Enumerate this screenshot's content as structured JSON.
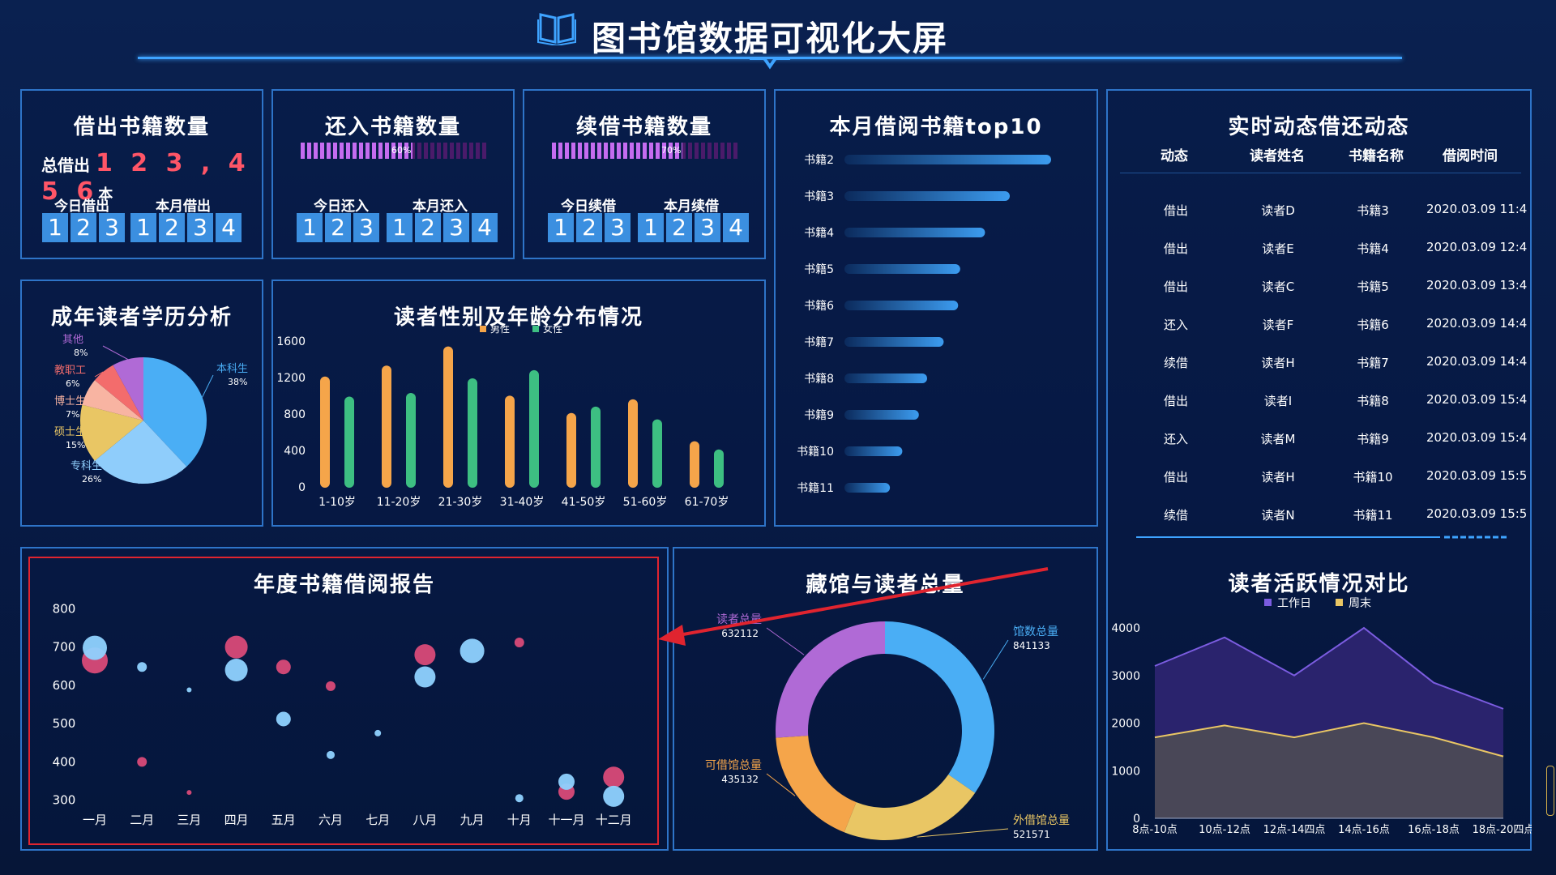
{
  "header": {
    "title": "图书馆数据可视化大屏"
  },
  "borrow_card": {
    "title": "借出书籍数量",
    "total_label": "总借出",
    "total_value": "1 2 3 , 4 5 6",
    "total_unit": "本",
    "today_label": "今日借出",
    "month_label": "本月借出",
    "today_digits": [
      "1",
      "2",
      "3"
    ],
    "month_digits": [
      "1",
      "2",
      "3",
      "4"
    ]
  },
  "return_card": {
    "title": "还入书籍数量",
    "progress": 60,
    "progress_label": "60%",
    "today_label": "今日还入",
    "month_label": "本月还入",
    "today_digits": [
      "1",
      "2",
      "3"
    ],
    "month_digits": [
      "1",
      "2",
      "3",
      "4"
    ]
  },
  "renew_card": {
    "title": "续借书籍数量",
    "progress": 70,
    "progress_label": "70%",
    "today_label": "今日续借",
    "month_label": "本月续借",
    "today_digits": [
      "1",
      "2",
      "3"
    ],
    "month_digits": [
      "1",
      "2",
      "3",
      "4"
    ]
  },
  "top10": {
    "title": "本月借阅书籍top10",
    "chart_data": {
      "type": "bar",
      "categories": [
        "书籍2",
        "书籍3",
        "书籍4",
        "书籍5",
        "书籍6",
        "书籍7",
        "书籍8",
        "书籍9",
        "书籍10",
        "书籍11"
      ],
      "values": [
        100,
        80,
        68,
        56,
        55,
        48,
        40,
        36,
        28,
        22
      ],
      "orientation": "horizontal"
    }
  },
  "realtime": {
    "title": "实时动态借还动态",
    "columns": [
      "动态",
      "读者姓名",
      "书籍名称",
      "借阅时间"
    ],
    "rows": [
      [
        "借出",
        "读者D",
        "书籍3",
        "2020.03.09 11:4"
      ],
      [
        "借出",
        "读者E",
        "书籍4",
        "2020.03.09 12:4"
      ],
      [
        "借出",
        "读者C",
        "书籍5",
        "2020.03.09 13:4"
      ],
      [
        "还入",
        "读者F",
        "书籍6",
        "2020.03.09 14:4"
      ],
      [
        "续借",
        "读者H",
        "书籍7",
        "2020.03.09 14:4"
      ],
      [
        "借出",
        "读者I",
        "书籍8",
        "2020.03.09 15:4"
      ],
      [
        "还入",
        "读者M",
        "书籍9",
        "2020.03.09 15:4"
      ],
      [
        "借出",
        "读者H",
        "书籍10",
        "2020.03.09 15:5"
      ],
      [
        "续借",
        "读者N",
        "书籍11",
        "2020.03.09 15:5"
      ]
    ]
  },
  "education": {
    "title": "成年读者学历分析",
    "chart_data": {
      "type": "pie",
      "slices": [
        {
          "name": "本科生",
          "value": 38,
          "label": "38%",
          "color": "#4aaef5"
        },
        {
          "name": "专科生",
          "value": 26,
          "label": "26%",
          "color": "#8fcdfb"
        },
        {
          "name": "硕士生",
          "value": 15,
          "label": "15%",
          "color": "#e9c664"
        },
        {
          "name": "博士生",
          "value": 7,
          "label": "7%",
          "color": "#f8b4a2"
        },
        {
          "name": "教职工",
          "value": 6,
          "label": "6%",
          "color": "#f36c6c"
        },
        {
          "name": "其他",
          "value": 8,
          "label": "8%",
          "color": "#b06ad6"
        }
      ]
    }
  },
  "gender_age": {
    "title": "读者性别及年龄分布情况",
    "chart_data": {
      "type": "bar",
      "categories": [
        "1-10岁",
        "11-20岁",
        "21-30岁",
        "31-40岁",
        "41-50岁",
        "51-60岁",
        "61-70岁"
      ],
      "series": [
        {
          "name": "男性",
          "color": "#f5a54a",
          "values": [
            1220,
            1340,
            1550,
            1010,
            820,
            970,
            510
          ]
        },
        {
          "name": "女性",
          "color": "#3dbf82",
          "values": [
            1000,
            1040,
            1200,
            1290,
            890,
            750,
            420
          ]
        }
      ],
      "yticks": [
        "0",
        "400",
        "800",
        "1200",
        "1600"
      ],
      "ylim": [
        0,
        1600
      ]
    }
  },
  "annual": {
    "title": "年度书籍借阅报告",
    "chart_data": {
      "type": "scatter",
      "categories": [
        "一月",
        "二月",
        "三月",
        "四月",
        "五月",
        "六月",
        "七月",
        "八月",
        "九月",
        "十月",
        "十一月",
        "十二月"
      ],
      "yticks": [
        "300",
        "400",
        "500",
        "600",
        "700",
        "800"
      ],
      "ylim": [
        280,
        820
      ],
      "series": [
        {
          "color": "#d94a78",
          "points": [
            [
              0,
              665,
              16
            ],
            [
              1,
              400,
              6
            ],
            [
              2,
              320,
              3
            ],
            [
              3,
              700,
              14
            ],
            [
              4,
              648,
              9
            ],
            [
              5,
              598,
              6
            ],
            [
              7,
              680,
              13
            ],
            [
              9,
              712,
              6
            ],
            [
              10,
              322,
              10
            ],
            [
              11,
              360,
              13
            ]
          ]
        },
        {
          "color": "#8fd2ff",
          "points": [
            [
              0,
              698,
              15
            ],
            [
              1,
              648,
              6
            ],
            [
              2,
              588,
              3
            ],
            [
              3,
              640,
              14
            ],
            [
              4,
              512,
              9
            ],
            [
              5,
              418,
              5
            ],
            [
              6,
              475,
              4
            ],
            [
              7,
              622,
              13
            ],
            [
              8,
              690,
              15
            ],
            [
              9,
              305,
              5
            ],
            [
              10,
              348,
              10
            ],
            [
              11,
              310,
              13
            ]
          ]
        }
      ]
    }
  },
  "collection": {
    "title": "藏馆与读者总量",
    "chart_data": {
      "type": "pie",
      "slices": [
        {
          "name": "馆数总量",
          "value": 841133,
          "label": "841133",
          "color": "#4aaef5"
        },
        {
          "name": "外借馆总量",
          "value": 521571,
          "label": "521571",
          "color": "#e9c664"
        },
        {
          "name": "可借馆总量",
          "value": 435132,
          "label": "435132",
          "color": "#f5a54a"
        },
        {
          "name": "读者总量",
          "value": 632112,
          "label": "632112",
          "color": "#b06ad6"
        }
      ]
    }
  },
  "activity": {
    "title": "读者活跃情况对比",
    "chart_data": {
      "type": "area",
      "categories": [
        "8点-10点",
        "10点-12点",
        "12点-14四点",
        "14点-16点",
        "16点-18点",
        "18点-20四点"
      ],
      "series": [
        {
          "name": "工作日",
          "color": "#7b5ce0",
          "values": [
            3200,
            3800,
            3000,
            4000,
            2850,
            2300
          ]
        },
        {
          "name": "周末",
          "color": "#e9c664",
          "values": [
            1700,
            1950,
            1700,
            2000,
            1700,
            1300
          ]
        }
      ],
      "yticks": [
        "0",
        "1000",
        "2000",
        "3000",
        "4000"
      ],
      "ylim": [
        0,
        4000
      ]
    }
  }
}
